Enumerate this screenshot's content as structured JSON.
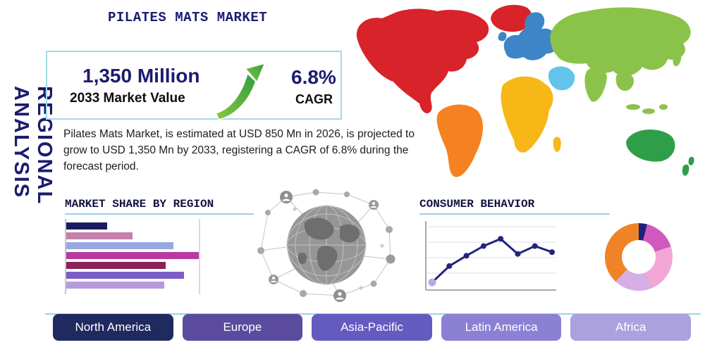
{
  "title": "PILATES MATS MARKET",
  "side_label": "REGIONAL ANALYSIS",
  "metrics": {
    "value": "1,350 Million",
    "value_caption": "2033 Market Value",
    "cagr": "6.8%",
    "cagr_caption": "CAGR"
  },
  "description": "Pilates Mats Market, is estimated at USD 850 Mn in 2026, is projected to grow to USD 1,350 Mn by 2033, registering a CAGR of 6.8% during the forecast period.",
  "region_buttons": [
    {
      "label": "North America",
      "color": "#1f2a5e"
    },
    {
      "label": "Europe",
      "color": "#5b4b9e"
    },
    {
      "label": "Asia-Pacific",
      "color": "#655ac0"
    },
    {
      "label": "Latin America",
      "color": "#8b80d4"
    },
    {
      "label": "Africa",
      "color": "#aba1df"
    }
  ],
  "map_regions": {
    "north_america": "#d8232a",
    "south_america": "#f58220",
    "europe": "#3d85c6",
    "africa": "#f7b717",
    "asia": "#8bc34a",
    "middle_east": "#62c4ea",
    "oceania": "#2f9e49"
  },
  "accent": {
    "navy": "#1b1b6f",
    "light_blue_rule": "#99d4e4",
    "arrow_green": "#4caf3e"
  },
  "chart_data": [
    {
      "type": "bar",
      "title": "MARKET SHARE BY REGION",
      "orientation": "horizontal",
      "categories": [
        "",
        "",
        "",
        "",
        "",
        "",
        ""
      ],
      "values": [
        31,
        50,
        81,
        100,
        75,
        89,
        74
      ],
      "value_range": [
        0,
        100
      ],
      "colors": [
        "#1b1b63",
        "#c480ab",
        "#97a9e1",
        "#b93a9e",
        "#8e2156",
        "#7a5dc7",
        "#b79ade"
      ]
    },
    {
      "type": "line",
      "title": "CONSUMER BEHAVIOR",
      "x": [
        1,
        2,
        3,
        4,
        5,
        6,
        7,
        8
      ],
      "values": [
        8,
        35,
        52,
        68,
        80,
        55,
        68,
        58
      ],
      "ylim": [
        0,
        100
      ],
      "line_color": "#23237a",
      "first_point_color": "#b9a6e8",
      "grid": "horizontal"
    },
    {
      "type": "pie",
      "donut": true,
      "slices": [
        {
          "color": "#20207a",
          "value": 4
        },
        {
          "color": "#cf59bd",
          "value": 16
        },
        {
          "color": "#f2a6d6",
          "value": 24
        },
        {
          "color": "#d4aee4",
          "value": 18
        },
        {
          "color": "#ef8326",
          "value": 38
        }
      ]
    }
  ]
}
